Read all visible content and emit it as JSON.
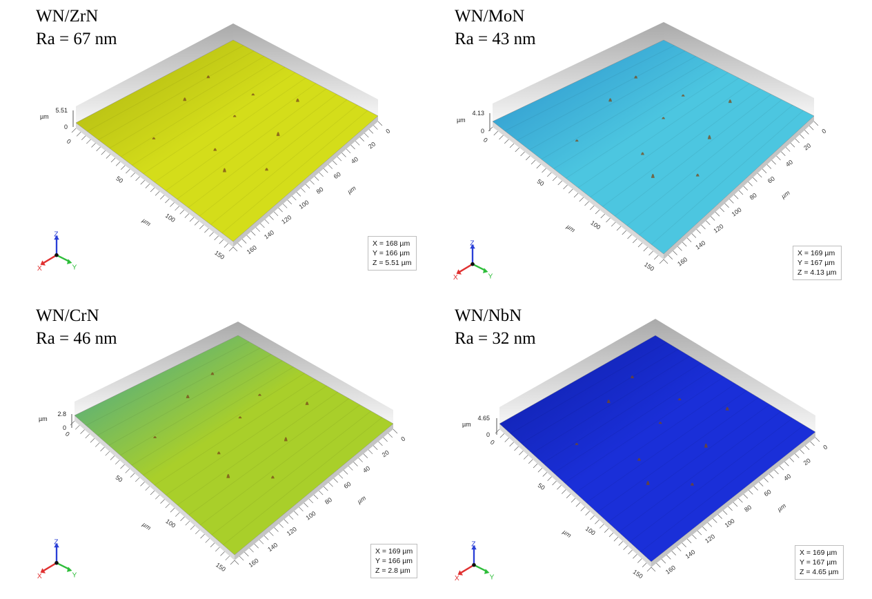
{
  "panels": [
    {
      "material": "WN/ZrN",
      "ra": "Ra = 67 nm",
      "z_max_label": "5.51",
      "z_zero_label": "0",
      "z_unit": "µm",
      "x_ticks": [
        "0",
        "50",
        "100",
        "150"
      ],
      "y_ticks": [
        "0",
        "20",
        "40",
        "60",
        "80",
        "100",
        "120",
        "140",
        "160"
      ],
      "unit_label": "µm",
      "info": {
        "x": "X = 168 µm",
        "y": "Y = 166 µm",
        "z": "Z = 5.51 µm"
      },
      "surface_color": "#d4dd1a",
      "surface_shade": "#a9b012"
    },
    {
      "material": "WN/MoN",
      "ra": "Ra = 43 nm",
      "z_max_label": "4.13",
      "z_zero_label": "0",
      "z_unit": "µm",
      "x_ticks": [
        "0",
        "50",
        "100",
        "150"
      ],
      "y_ticks": [
        "0",
        "20",
        "40",
        "60",
        "80",
        "100",
        "120",
        "140",
        "160"
      ],
      "unit_label": "µm",
      "info": {
        "x": "X = 169 µm",
        "y": "Y = 167 µm",
        "z": "Z = 4.13 µm"
      },
      "surface_color": "#4cc6e0",
      "surface_shade": "#2a8fcb"
    },
    {
      "material": "WN/CrN",
      "ra": "Ra = 46 nm",
      "z_max_label": "2.8",
      "z_zero_label": "0",
      "z_unit": "µm",
      "x_ticks": [
        "0",
        "50",
        "100",
        "150"
      ],
      "y_ticks": [
        "0",
        "20",
        "40",
        "60",
        "80",
        "100",
        "120",
        "140",
        "160"
      ],
      "unit_label": "µm",
      "info": {
        "x": "X = 169 µm",
        "y": "Y = 166 µm",
        "z": "Z = 2.8 µm"
      },
      "surface_color": "#a9cf2a",
      "surface_shade": "#3aa39a"
    },
    {
      "material": "WN/NbN",
      "ra": "Ra = 32 nm",
      "z_max_label": "4.65",
      "z_zero_label": "0",
      "z_unit": "µm",
      "x_ticks": [
        "0",
        "50",
        "100",
        "150"
      ],
      "y_ticks": [
        "0",
        "20",
        "40",
        "60",
        "80",
        "100",
        "120",
        "140",
        "160"
      ],
      "unit_label": "µm",
      "info": {
        "x": "X = 169 µm",
        "y": "Y = 167 µm",
        "z": "Z = 4.65 µm"
      },
      "surface_color": "#1a2fd8",
      "surface_shade": "#0f1fa6"
    }
  ],
  "axes_icon": {
    "x": "X",
    "y": "Y",
    "z": "Z",
    "x_color": "#e03030",
    "y_color": "#2ebd3a",
    "z_color": "#2a3fd6"
  }
}
